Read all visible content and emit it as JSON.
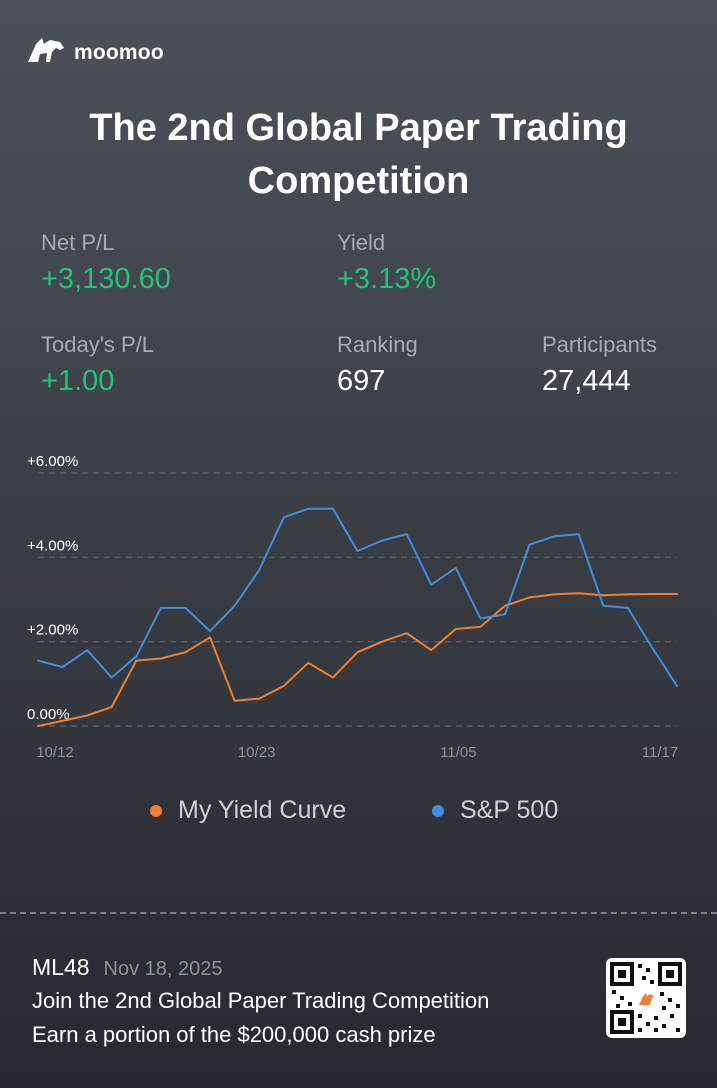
{
  "brand": {
    "name": "moomoo",
    "icon": "bull-logo-icon"
  },
  "title": "The 2nd Global Paper Trading Competition",
  "stats": {
    "net_pl": {
      "label": "Net P/L",
      "value": "+3,130.60"
    },
    "yield": {
      "label": "Yield",
      "value": "+3.13%"
    },
    "today_pl": {
      "label": "Today's P/L",
      "value": "+1.00"
    },
    "ranking": {
      "label": "Ranking",
      "value": "697"
    },
    "participants": {
      "label": "Participants",
      "value": "27,444"
    }
  },
  "colors": {
    "positive": "#21c47a",
    "my_yield": "#f0802e",
    "sp500": "#3f8fe0"
  },
  "chart_data": {
    "type": "line",
    "y_tick_labels": [
      "0.00%",
      "+2.00%",
      "+4.00%",
      "+6.00%"
    ],
    "x_tick_labels": [
      "10/12",
      "10/23",
      "11/05",
      "11/17"
    ],
    "ylim": [
      0,
      6
    ],
    "grid": true,
    "legend": "bottom",
    "series": [
      {
        "name": "My Yield Curve",
        "color": "#f0802e",
        "values": [
          0.0,
          0.12,
          0.25,
          0.45,
          1.55,
          1.6,
          1.75,
          2.1,
          0.6,
          0.65,
          0.95,
          1.5,
          1.15,
          1.75,
          2.0,
          2.2,
          1.8,
          2.3,
          2.35,
          2.85,
          3.05,
          3.12,
          3.15,
          3.1,
          3.12,
          3.13,
          3.13
        ]
      },
      {
        "name": "S&P 500",
        "color": "#3f8fe0",
        "values": [
          1.55,
          1.4,
          1.8,
          1.15,
          1.65,
          2.8,
          2.8,
          2.25,
          2.85,
          3.7,
          4.95,
          5.15,
          5.15,
          4.15,
          4.4,
          4.55,
          3.35,
          3.75,
          2.55,
          2.65,
          4.3,
          4.5,
          4.55,
          2.85,
          2.8,
          1.85,
          0.95
        ]
      }
    ]
  },
  "footer": {
    "username": "ML48",
    "date": "Nov 18, 2025",
    "line1": "Join the 2nd Global Paper Trading Competition",
    "line2": "Earn a portion of the $200,000 cash prize",
    "qr_icon": "qr-code-icon"
  }
}
